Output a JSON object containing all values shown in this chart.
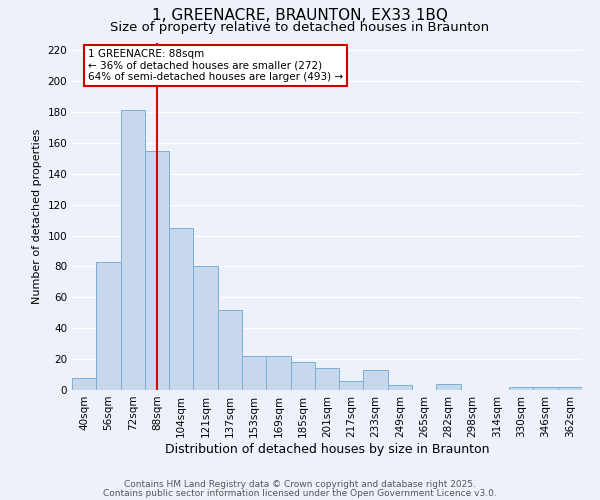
{
  "title": "1, GREENACRE, BRAUNTON, EX33 1BQ",
  "subtitle": "Size of property relative to detached houses in Braunton",
  "xlabel": "Distribution of detached houses by size in Braunton",
  "ylabel": "Number of detached properties",
  "bar_labels": [
    "40sqm",
    "56sqm",
    "72sqm",
    "88sqm",
    "104sqm",
    "121sqm",
    "137sqm",
    "153sqm",
    "169sqm",
    "185sqm",
    "201sqm",
    "217sqm",
    "233sqm",
    "249sqm",
    "265sqm",
    "282sqm",
    "298sqm",
    "314sqm",
    "330sqm",
    "346sqm",
    "362sqm"
  ],
  "bar_values": [
    8,
    83,
    181,
    155,
    105,
    80,
    52,
    22,
    22,
    18,
    14,
    6,
    13,
    3,
    0,
    4,
    0,
    0,
    2,
    2,
    2
  ],
  "bar_color": "#c8d8ec",
  "bar_edge_color": "#7aafd4",
  "vline_x_index": 3,
  "vline_color": "#dd0000",
  "annotation_text": "1 GREENACRE: 88sqm\n← 36% of detached houses are smaller (272)\n64% of semi-detached houses are larger (493) →",
  "annotation_box_edge": "#cc0000",
  "annotation_box_bg": "white",
  "ylim": [
    0,
    225
  ],
  "yticks": [
    0,
    20,
    40,
    60,
    80,
    100,
    120,
    140,
    160,
    180,
    200,
    220
  ],
  "bg_color": "#edf2fa",
  "grid_color": "white",
  "footer_line1": "Contains HM Land Registry data © Crown copyright and database right 2025.",
  "footer_line2": "Contains public sector information licensed under the Open Government Licence v3.0.",
  "title_fontsize": 11,
  "subtitle_fontsize": 9.5,
  "xlabel_fontsize": 9,
  "ylabel_fontsize": 8,
  "tick_fontsize": 7.5,
  "footer_fontsize": 6.5,
  "annot_fontsize": 7.5
}
